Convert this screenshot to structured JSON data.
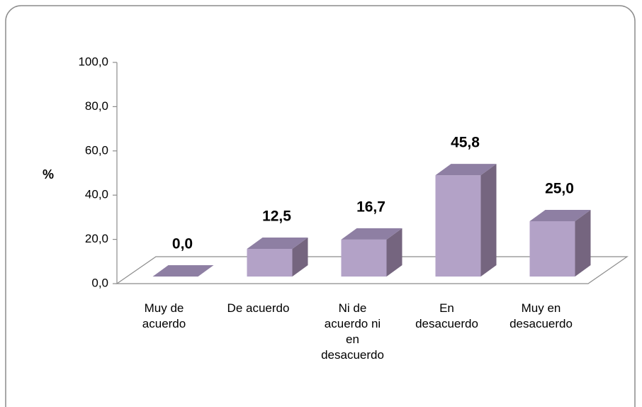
{
  "chart_data": {
    "type": "bar3d",
    "ylabel": "%",
    "categories": [
      "Muy de acuerdo",
      "De acuerdo",
      "Ni de acuerdo ni en desacuerdo",
      "En desacuerdo",
      "Muy en desacuerdo"
    ],
    "values": [
      0,
      12.5,
      16.7,
      45.8,
      25
    ],
    "value_labels": [
      "0,0",
      "12,5",
      "16,7",
      "45,8",
      "25,0"
    ],
    "color": "#b3a2c7",
    "ylim": [
      0,
      100
    ],
    "yticks": [
      {
        "value": 0,
        "label": "0,0"
      },
      {
        "value": 20,
        "label": "20,0"
      },
      {
        "value": 40,
        "label": "40,0"
      },
      {
        "value": 60,
        "label": "60,0"
      },
      {
        "value": 80,
        "label": "80,0"
      },
      {
        "value": 100,
        "label": "100,0"
      }
    ]
  }
}
